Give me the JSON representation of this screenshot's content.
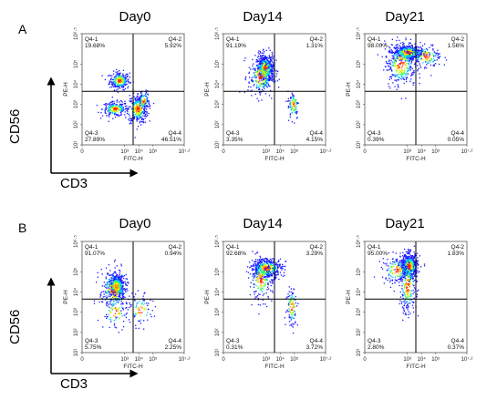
{
  "panels": [
    {
      "letter": "A",
      "axis_y": "CD56",
      "axis_x": "CD3"
    },
    {
      "letter": "B",
      "axis_y": "CD56",
      "axis_x": "CD3"
    }
  ],
  "plot_axes": {
    "xlabel": "FITC-H",
    "ylabel": "PE-H",
    "x_ticks": [
      "0",
      "10³",
      "10⁴",
      "10⁵",
      "10⁷·²"
    ],
    "y_ticks": [
      "10¹",
      "10²",
      "10³",
      "10⁴",
      "10⁵",
      "10⁶·⁵"
    ]
  },
  "colors": {
    "density_low": "#1a1aff",
    "density_mid": "#00c8ff",
    "density_high": "#ff2000",
    "gate_line": "#000000"
  },
  "chart_data": [
    {
      "type": "scatter",
      "panel": "A",
      "title": "Day0",
      "quadrants": [
        {
          "label": "Q4-1",
          "value": "19.68%"
        },
        {
          "label": "Q4-2",
          "value": "5.92%"
        },
        {
          "label": "Q4-3",
          "value": "27.89%"
        },
        {
          "label": "Q4-4",
          "value": "46.51%"
        }
      ],
      "gate": {
        "x": 3.6,
        "y": 3.65
      },
      "clusters": [
        {
          "x": 2.6,
          "y": 4.2,
          "sx": 0.35,
          "sy": 0.22,
          "n": 260
        },
        {
          "x": 2.3,
          "y": 2.8,
          "sx": 0.45,
          "sy": 0.18,
          "n": 220
        },
        {
          "x": 3.9,
          "y": 2.8,
          "sx": 0.35,
          "sy": 0.35,
          "n": 330
        },
        {
          "x": 4.3,
          "y": 3.2,
          "sx": 0.2,
          "sy": 0.25,
          "n": 90
        }
      ]
    },
    {
      "type": "scatter",
      "panel": "A",
      "title": "Day14",
      "quadrants": [
        {
          "label": "Q4-1",
          "value": "91.19%"
        },
        {
          "label": "Q4-2",
          "value": "1.31%"
        },
        {
          "label": "Q4-3",
          "value": "3.35%"
        },
        {
          "label": "Q4-4",
          "value": "4.15%"
        }
      ],
      "gate": {
        "x": 3.6,
        "y": 3.65
      },
      "clusters": [
        {
          "x": 2.9,
          "y": 4.8,
          "sx": 0.3,
          "sy": 0.35,
          "n": 560
        },
        {
          "x": 2.6,
          "y": 4.4,
          "sx": 0.45,
          "sy": 0.5,
          "n": 220
        },
        {
          "x": 4.9,
          "y": 3.0,
          "sx": 0.2,
          "sy": 0.35,
          "n": 90
        }
      ]
    },
    {
      "type": "scatter",
      "panel": "A",
      "title": "Day21",
      "quadrants": [
        {
          "label": "Q4-1",
          "value": "98.00%"
        },
        {
          "label": "Q4-2",
          "value": "1.56%"
        },
        {
          "label": "Q4-3",
          "value": "0.39%"
        },
        {
          "label": "Q4-4",
          "value": "0.05%"
        }
      ],
      "gate": {
        "x": 3.6,
        "y": 3.65
      },
      "clusters": [
        {
          "x": 3.0,
          "y": 5.6,
          "sx": 0.55,
          "sy": 0.18,
          "n": 520
        },
        {
          "x": 2.5,
          "y": 5.0,
          "sx": 0.55,
          "sy": 0.55,
          "n": 300
        },
        {
          "x": 4.3,
          "y": 5.4,
          "sx": 0.55,
          "sy": 0.3,
          "n": 140
        }
      ]
    },
    {
      "type": "scatter",
      "panel": "B",
      "title": "Day0",
      "quadrants": [
        {
          "label": "Q4-1",
          "value": "91.07%"
        },
        {
          "label": "Q4-2",
          "value": "0.94%"
        },
        {
          "label": "Q4-3",
          "value": "5.75%"
        },
        {
          "label": "Q4-4",
          "value": "2.25%"
        }
      ],
      "gate": {
        "x": 3.6,
        "y": 3.65
      },
      "clusters": [
        {
          "x": 2.4,
          "y": 4.3,
          "sx": 0.28,
          "sy": 0.28,
          "n": 520
        },
        {
          "x": 2.2,
          "y": 4.1,
          "sx": 0.5,
          "sy": 0.55,
          "n": 200
        },
        {
          "x": 2.3,
          "y": 3.0,
          "sx": 0.45,
          "sy": 0.4,
          "n": 80
        },
        {
          "x": 4.1,
          "y": 3.1,
          "sx": 0.4,
          "sy": 0.4,
          "n": 80
        }
      ]
    },
    {
      "type": "scatter",
      "panel": "B",
      "title": "Day14",
      "quadrants": [
        {
          "label": "Q4-1",
          "value": "92.68%"
        },
        {
          "label": "Q4-2",
          "value": "3.29%"
        },
        {
          "label": "Q4-3",
          "value": "0.31%"
        },
        {
          "label": "Q4-4",
          "value": "3.72%"
        }
      ],
      "gate": {
        "x": 3.6,
        "y": 3.65
      },
      "clusters": [
        {
          "x": 3.0,
          "y": 5.2,
          "sx": 0.55,
          "sy": 0.25,
          "n": 460
        },
        {
          "x": 2.6,
          "y": 4.6,
          "sx": 0.4,
          "sy": 0.5,
          "n": 200
        },
        {
          "x": 4.8,
          "y": 3.3,
          "sx": 0.2,
          "sy": 0.5,
          "n": 110
        }
      ]
    },
    {
      "type": "scatter",
      "panel": "B",
      "title": "Day21",
      "quadrants": [
        {
          "label": "Q4-1",
          "value": "95.00%"
        },
        {
          "label": "Q4-2",
          "value": "1.83%"
        },
        {
          "label": "Q4-3",
          "value": "2.80%"
        },
        {
          "label": "Q4-4",
          "value": "0.37%"
        }
      ],
      "gate": {
        "x": 3.6,
        "y": 3.65
      },
      "clusters": [
        {
          "x": 3.1,
          "y": 5.3,
          "sx": 0.3,
          "sy": 0.3,
          "n": 560
        },
        {
          "x": 3.0,
          "y": 4.3,
          "sx": 0.3,
          "sy": 0.7,
          "n": 240
        },
        {
          "x": 2.2,
          "y": 5.1,
          "sx": 0.5,
          "sy": 0.35,
          "n": 140
        }
      ]
    }
  ]
}
